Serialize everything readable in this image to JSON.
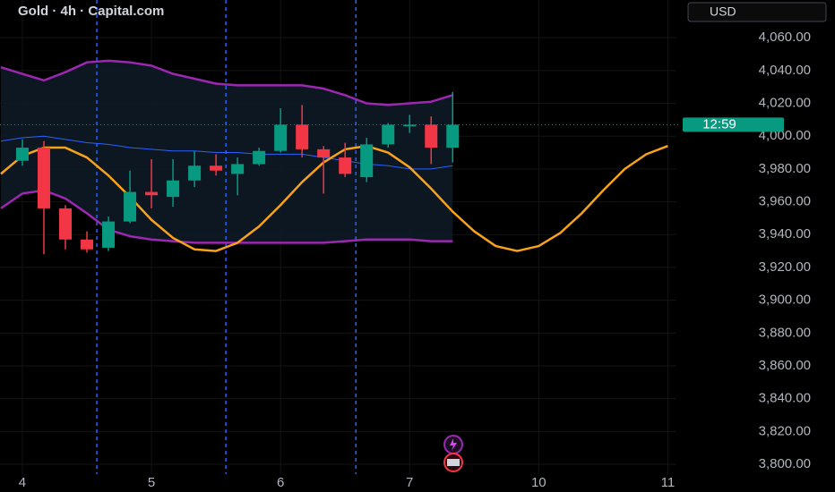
{
  "chart_data": {
    "type": "candlestick",
    "title": "Gold · 4h · Capital.com",
    "currency": "USD",
    "countdown": "12:59",
    "x": [
      0,
      1,
      2,
      3,
      4,
      5,
      6,
      7,
      8,
      9,
      10,
      11,
      12,
      13,
      14,
      15,
      16,
      17,
      18,
      19,
      20
    ],
    "open": [
      3985,
      3993,
      3956,
      3937,
      3932,
      3948,
      3966,
      3963,
      3973,
      3982,
      3977,
      3983,
      3991,
      4007,
      3992,
      3987,
      3975,
      3995,
      4006,
      4007,
      3993
    ],
    "high": [
      3998,
      3997,
      3958,
      3942,
      3951,
      3979,
      3986,
      3986,
      3991,
      3989,
      3987,
      3993,
      4017,
      4019,
      3994,
      3996,
      3999,
      4008,
      4013,
      4012,
      4027
    ],
    "low": [
      3982,
      3928,
      3931,
      3929,
      3930,
      3947,
      3956,
      3957,
      3969,
      3976,
      3964,
      3982,
      3990,
      3987,
      3965,
      3975,
      3972,
      3993,
      4002,
      3983,
      3984
    ],
    "close": [
      3993,
      3956,
      3937,
      3931,
      3948,
      3966,
      3964,
      3973,
      3982,
      3979,
      3983,
      3991,
      4007,
      3992,
      3987,
      3977,
      3995,
      4007,
      4007,
      3993,
      4007
    ],
    "up_color": "#089981",
    "down_color": "#f23645",
    "xlim": [
      -1.04,
      30.4
    ],
    "xticks": [
      {
        "value": 0,
        "label": "4"
      },
      {
        "value": 6,
        "label": "5"
      },
      {
        "value": 12,
        "label": "6"
      },
      {
        "value": 18,
        "label": "7"
      },
      {
        "value": 24,
        "label": "10"
      },
      {
        "value": 30,
        "label": "11"
      }
    ],
    "ylim": [
      3794,
      4083
    ],
    "yticks": [
      {
        "value": 3800,
        "label": "3,800.00"
      },
      {
        "value": 3820,
        "label": "3,820.00"
      },
      {
        "value": 3840,
        "label": "3,840.00"
      },
      {
        "value": 3860,
        "label": "3,860.00"
      },
      {
        "value": 3880,
        "label": "3,880.00"
      },
      {
        "value": 3900,
        "label": "3,900.00"
      },
      {
        "value": 3920,
        "label": "3,920.00"
      },
      {
        "value": 3940,
        "label": "3,940.00"
      },
      {
        "value": 3960,
        "label": "3,960.00"
      },
      {
        "value": 3980,
        "label": "3,980.00"
      },
      {
        "value": 4000,
        "label": "4,000.00"
      },
      {
        "value": 4020,
        "label": "4,020.00"
      },
      {
        "value": 4040,
        "label": "4,040.00"
      },
      {
        "value": 4060,
        "label": "4,060.00"
      }
    ],
    "grid": true,
    "last_price": 4007,
    "last_price_color": "#089981",
    "session_breaks": [
      3.46,
      9.46,
      15.5
    ],
    "break_color": "#2962ff",
    "bands": {
      "x": [
        -1,
        0,
        1,
        2,
        3,
        4,
        5,
        6,
        7,
        8,
        9,
        10,
        11,
        12,
        13,
        14,
        15,
        16,
        17,
        18,
        19,
        20
      ],
      "fill": "#0e1a26",
      "series": [
        {
          "color": "#9c27b0",
          "values": [
            4042,
            4038,
            4034,
            4039,
            4045,
            4046,
            4045,
            4043,
            4038,
            4035,
            4032,
            4031,
            4031,
            4031,
            4031,
            4029,
            4025,
            4020,
            4019,
            4020,
            4021,
            4025
          ]
        },
        {
          "color": "#2962ff",
          "values": [
            3997,
            3999,
            4000,
            3998,
            3996,
            3995,
            3993,
            3992,
            3991,
            3991,
            3990,
            3990,
            3989,
            3989,
            3989,
            3987,
            3985,
            3983,
            3982,
            3980,
            3980,
            3982
          ]
        },
        {
          "color": "#9c27b0",
          "values": [
            3956,
            3965,
            3967,
            3962,
            3953,
            3943,
            3939,
            3937,
            3936,
            3935,
            3935,
            3935,
            3935,
            3935,
            3935,
            3935,
            3936,
            3937,
            3937,
            3937,
            3936,
            3936
          ]
        }
      ]
    },
    "wave": {
      "color": "#f7a21b",
      "x": [
        -1,
        0,
        1,
        2,
        3,
        4,
        5,
        6,
        7,
        8,
        9,
        10,
        11,
        12,
        13,
        14,
        15,
        16,
        17,
        18,
        19,
        20,
        21,
        22,
        23,
        24,
        25,
        26,
        27,
        28,
        29,
        30
      ],
      "values": [
        3977,
        3988,
        3993,
        3993,
        3987,
        3976,
        3963,
        3949,
        3938,
        3931,
        3930,
        3935,
        3945,
        3958,
        3972,
        3984,
        3992,
        3994,
        3990,
        3981,
        3968,
        3954,
        3942,
        3933,
        3930,
        3933,
        3941,
        3953,
        3967,
        3980,
        3989,
        3994
      ]
    }
  }
}
